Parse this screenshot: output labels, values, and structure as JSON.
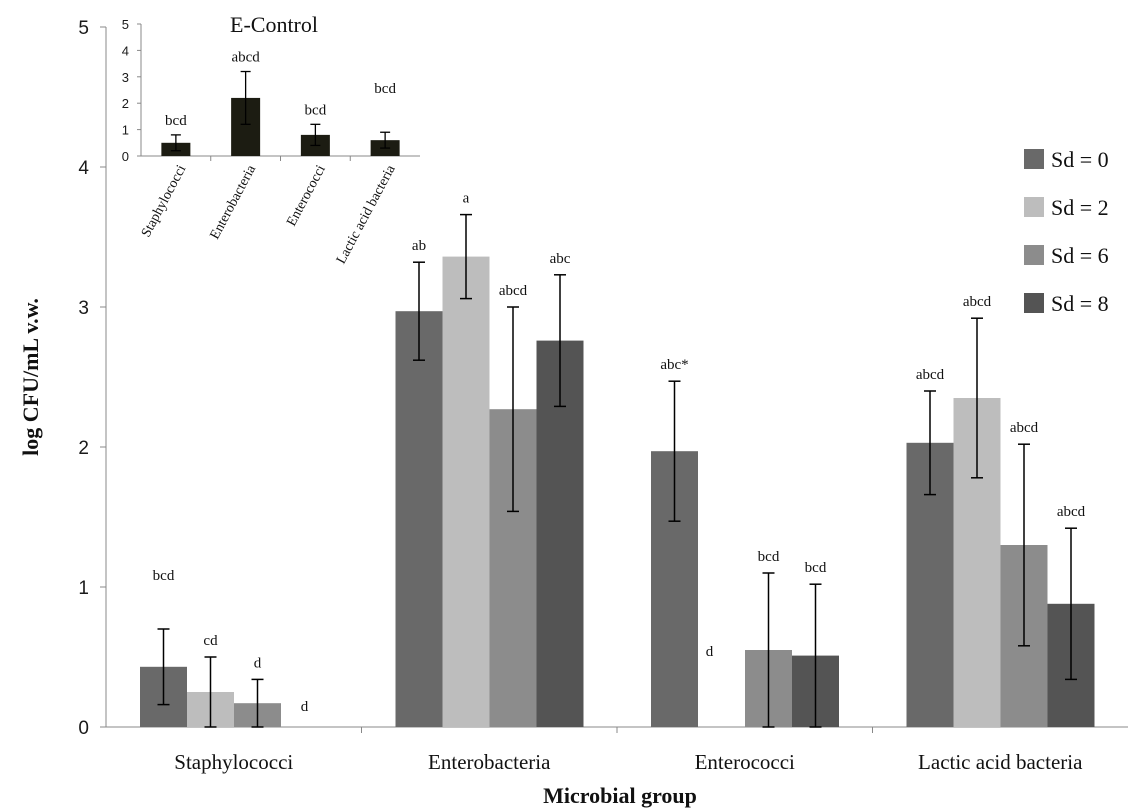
{
  "chart_data": [
    {
      "type": "bar",
      "xlabel": "Microbial group",
      "ylabel": "log CFU/mL v.w.",
      "ylim": [
        0,
        5
      ],
      "yticks": [
        "0",
        "1",
        "2",
        "3",
        "4",
        "5"
      ],
      "categories": [
        "Staphylococci",
        "Enterobacteria",
        "Enterococci",
        "Lactic acid bacteria"
      ],
      "legend_position": "right",
      "series": [
        {
          "name": "Sd = 0",
          "color": "#696969",
          "values": [
            0.43,
            2.97,
            1.97,
            2.03
          ],
          "errors": [
            0.27,
            0.35,
            0.5,
            0.37
          ],
          "labels": [
            "bcd",
            "ab",
            "abc*",
            "abcd"
          ]
        },
        {
          "name": "Sd = 2",
          "color": "#bdbdbd",
          "values": [
            0.25,
            3.36,
            0,
            2.35
          ],
          "errors": [
            0.25,
            0.3,
            0,
            0.57
          ],
          "labels": [
            "cd",
            "a",
            "",
            "abcd"
          ]
        },
        {
          "name": "Sd = 6",
          "color": "#8c8c8c",
          "values": [
            0.17,
            2.27,
            0.55,
            1.3
          ],
          "errors": [
            0.17,
            0.73,
            0.55,
            0.72
          ],
          "labels": [
            "d",
            "abcd",
            "bcd",
            "abcd"
          ]
        },
        {
          "name": "Sd = 8",
          "color": "#545454",
          "values": [
            0,
            2.76,
            0.51,
            0.88
          ],
          "errors": [
            0,
            0.47,
            0.51,
            0.54
          ],
          "labels": [
            "d",
            "abc",
            "bcd",
            "abcd"
          ]
        }
      ],
      "extra_labels": [
        {
          "text": "d",
          "category": 2,
          "value": 0.55
        }
      ]
    },
    {
      "type": "bar",
      "title": "E-Control",
      "ylim": [
        0,
        5
      ],
      "yticks": [
        "0",
        "1",
        "2",
        "3",
        "4",
        "5"
      ],
      "categories": [
        "Staphylococci",
        "Enterobacteria",
        "Enterococci",
        "Lactic acid bacteria"
      ],
      "color": "#1c1c12",
      "values": [
        0.5,
        2.2,
        0.8,
        0.6
      ],
      "errors": [
        0.3,
        1.0,
        0.4,
        0.3
      ],
      "labels": [
        "bcd",
        "abcd",
        "bcd",
        "bcd"
      ]
    }
  ]
}
